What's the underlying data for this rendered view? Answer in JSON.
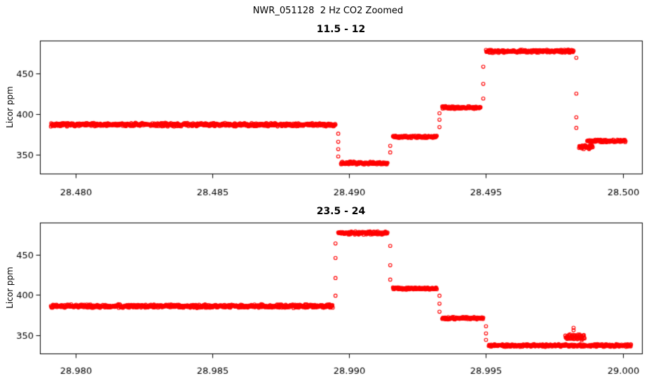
{
  "figure": {
    "title": "NWR_051128  2 Hz CO2 Zoomed",
    "background": "#ffffff",
    "axis_color": "#000000",
    "point_color": "#ff0000"
  },
  "chart_data": [
    {
      "type": "scatter",
      "title": "11.5 - 12",
      "ylabel": "Licor ppm",
      "marker": "open-circle",
      "grid": false,
      "xlim": [
        28.4787,
        28.5007
      ],
      "ylim": [
        327,
        490
      ],
      "xticks": [
        28.48,
        28.485,
        28.49,
        28.495,
        28.5
      ],
      "xtick_labels": [
        "28.480",
        "28.485",
        "28.490",
        "28.495",
        "28.500"
      ],
      "yticks": [
        350,
        400,
        450
      ],
      "ytick_labels": [
        "350",
        "400",
        "450"
      ],
      "segments": [
        {
          "x_start": 28.4791,
          "x_end": 28.4895,
          "y": 387,
          "noise": 2.4
        },
        {
          "x_start": 28.4897,
          "x_end": 28.4914,
          "y": 340,
          "noise": 2.0
        },
        {
          "x_start": 28.4916,
          "x_end": 28.4932,
          "y": 372,
          "noise": 1.8
        },
        {
          "x_start": 28.4934,
          "x_end": 28.4948,
          "y": 408,
          "noise": 1.8
        },
        {
          "x_start": 28.495,
          "x_end": 28.4982,
          "y": 477,
          "noise": 2.2
        },
        {
          "x_start": 28.4984,
          "x_end": 28.4989,
          "y": 360,
          "noise": 3.0
        },
        {
          "x_start": 28.4987,
          "x_end": 28.5001,
          "y": 367,
          "noise": 1.8
        }
      ],
      "transitions": [
        {
          "x": 28.4896,
          "ys": [
            376,
            366,
            357,
            348
          ]
        },
        {
          "x": 28.4915,
          "ys": [
            353,
            361
          ]
        },
        {
          "x": 28.4933,
          "ys": [
            384,
            393,
            401
          ]
        },
        {
          "x": 28.4949,
          "ys": [
            419,
            437,
            458
          ]
        },
        {
          "x": 28.4983,
          "ys": [
            469,
            425,
            396,
            383
          ]
        }
      ]
    },
    {
      "type": "scatter",
      "title": "23.5 - 24",
      "ylabel": "Licor ppm",
      "marker": "open-circle",
      "grid": false,
      "xlim": [
        28.9787,
        29.0007
      ],
      "ylim": [
        327,
        490
      ],
      "xticks": [
        28.98,
        28.985,
        28.99,
        28.995,
        29.0
      ],
      "xtick_labels": [
        "28.980",
        "28.985",
        "28.990",
        "28.995",
        "29.000"
      ],
      "yticks": [
        350,
        400,
        450
      ],
      "ytick_labels": [
        "350",
        "400",
        "450"
      ],
      "segments": [
        {
          "x_start": 28.9791,
          "x_end": 28.9894,
          "y": 386,
          "noise": 2.4
        },
        {
          "x_start": 28.9896,
          "x_end": 28.9914,
          "y": 477,
          "noise": 2.2
        },
        {
          "x_start": 28.9916,
          "x_end": 28.9932,
          "y": 408,
          "noise": 1.8
        },
        {
          "x_start": 28.9934,
          "x_end": 28.9949,
          "y": 371,
          "noise": 1.8
        },
        {
          "x_start": 28.9951,
          "x_end": 29.0003,
          "y": 337,
          "noise": 1.8
        },
        {
          "x_start": 28.9979,
          "x_end": 28.9986,
          "y": 347,
          "noise": 4.0
        }
      ],
      "transitions": [
        {
          "x": 28.9895,
          "ys": [
            399,
            421,
            446,
            464
          ]
        },
        {
          "x": 28.9915,
          "ys": [
            461,
            437,
            419
          ]
        },
        {
          "x": 28.9933,
          "ys": [
            399,
            389,
            379
          ]
        },
        {
          "x": 28.995,
          "ys": [
            361,
            352,
            344
          ]
        },
        {
          "x": 28.9982,
          "ys": [
            356,
            359
          ]
        }
      ]
    }
  ]
}
